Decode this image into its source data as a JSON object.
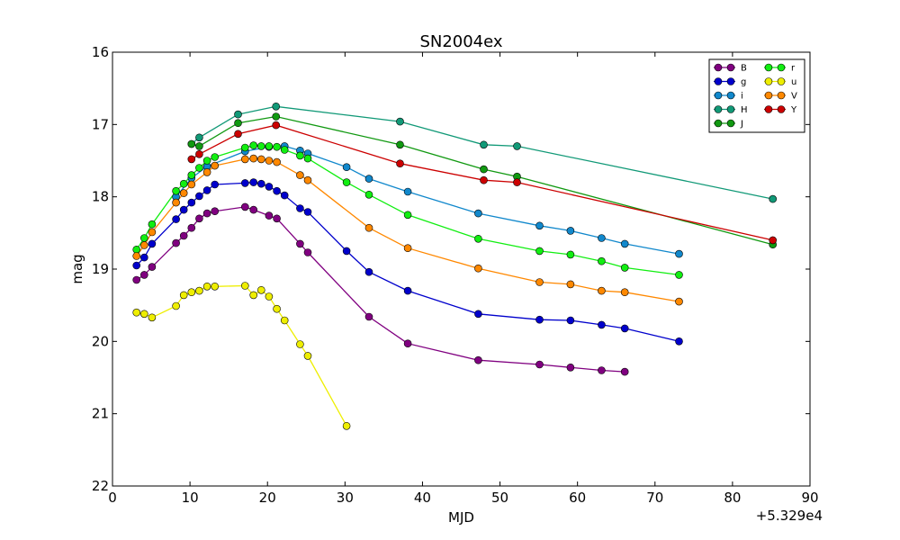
{
  "chart_data": {
    "type": "line",
    "title": "SN2004ex",
    "xlabel": "MJD",
    "ylabel": "mag",
    "x_offset_label": "+5.329e4",
    "xlim": [
      0,
      90
    ],
    "ylim": [
      22,
      16
    ],
    "y_inverted": true,
    "x_ticks": [
      0,
      10,
      20,
      30,
      40,
      50,
      60,
      70,
      80,
      90
    ],
    "y_ticks": [
      16,
      17,
      18,
      19,
      20,
      21,
      22
    ],
    "grid": false,
    "legend_position": "top-right",
    "legend_columns": 2,
    "series": [
      {
        "name": "B",
        "color": "#800080",
        "x": [
          3.1,
          4.1,
          5.1,
          8.2,
          9.2,
          10.2,
          11.2,
          12.2,
          13.2,
          17.1,
          18.2,
          20.2,
          21.2,
          24.2,
          25.2,
          33.1,
          38.1,
          47.2,
          55.1,
          59.1,
          63.1,
          66.1
        ],
        "y": [
          19.15,
          19.08,
          18.97,
          18.64,
          18.54,
          18.43,
          18.3,
          18.23,
          18.2,
          18.14,
          18.18,
          18.26,
          18.3,
          18.65,
          18.77,
          19.66,
          20.03,
          20.26,
          20.32,
          20.36,
          20.4,
          20.42
        ]
      },
      {
        "name": "g",
        "color": "#0000cc",
        "x": [
          3.1,
          4.1,
          5.1,
          8.2,
          9.2,
          10.2,
          11.2,
          12.2,
          13.2,
          17.1,
          18.2,
          19.2,
          20.2,
          21.2,
          22.2,
          24.2,
          25.2,
          30.2,
          33.1,
          38.1,
          47.2,
          55.1,
          59.1,
          63.1,
          66.1,
          73.1
        ],
        "y": [
          18.95,
          18.84,
          18.65,
          18.31,
          18.18,
          18.08,
          17.99,
          17.91,
          17.83,
          17.81,
          17.8,
          17.82,
          17.86,
          17.92,
          17.98,
          18.16,
          18.21,
          18.75,
          19.04,
          19.3,
          19.62,
          19.7,
          19.71,
          19.77,
          19.82,
          20.0
        ]
      },
      {
        "name": "i",
        "color": "#1188cc",
        "x": [
          8.2,
          10.2,
          12.2,
          17.1,
          20.2,
          22.2,
          24.2,
          25.2,
          30.2,
          33.1,
          38.1,
          47.2,
          55.1,
          59.1,
          63.1,
          66.1,
          73.1
        ],
        "y": [
          18.0,
          17.74,
          17.58,
          17.37,
          17.31,
          17.3,
          17.36,
          17.4,
          17.59,
          17.75,
          17.93,
          18.23,
          18.4,
          18.47,
          18.57,
          18.65,
          18.79
        ]
      },
      {
        "name": "H",
        "color": "#119977",
        "x": [
          10.2,
          11.2,
          16.2,
          21.1,
          37.1,
          47.9,
          52.2,
          85.2
        ],
        "y": [
          17.27,
          17.18,
          16.86,
          16.75,
          16.96,
          17.28,
          17.3,
          18.03
        ]
      },
      {
        "name": "J",
        "color": "#119911",
        "x": [
          10.2,
          11.2,
          16.2,
          21.1,
          37.1,
          47.9,
          52.2,
          85.2
        ],
        "y": [
          17.27,
          17.3,
          16.98,
          16.89,
          17.28,
          17.62,
          17.72,
          18.66
        ]
      },
      {
        "name": "r",
        "color": "#11ee11",
        "x": [
          3.1,
          4.1,
          5.1,
          8.2,
          9.2,
          10.2,
          11.2,
          12.2,
          13.2,
          17.1,
          18.2,
          19.2,
          20.2,
          21.2,
          22.2,
          24.2,
          25.2,
          30.2,
          33.1,
          38.1,
          47.2,
          55.1,
          59.1,
          63.1,
          66.1,
          73.1
        ],
        "y": [
          18.73,
          18.57,
          18.38,
          17.92,
          17.82,
          17.7,
          17.6,
          17.5,
          17.45,
          17.32,
          17.29,
          17.3,
          17.3,
          17.31,
          17.35,
          17.43,
          17.47,
          17.8,
          17.97,
          18.25,
          18.58,
          18.75,
          18.8,
          18.89,
          18.98,
          19.08
        ]
      },
      {
        "name": "u",
        "color": "#eeee00",
        "x": [
          3.1,
          4.1,
          5.1,
          8.2,
          9.2,
          10.2,
          11.2,
          12.2,
          13.2,
          17.1,
          18.2,
          19.2,
          20.2,
          21.2,
          22.2,
          24.2,
          25.2,
          30.2
        ],
        "y": [
          19.6,
          19.62,
          19.67,
          19.51,
          19.36,
          19.32,
          19.3,
          19.24,
          19.24,
          19.23,
          19.36,
          19.29,
          19.38,
          19.55,
          19.71,
          20.04,
          20.2,
          21.17
        ]
      },
      {
        "name": "V",
        "color": "#ff8800",
        "x": [
          3.1,
          4.1,
          5.1,
          8.2,
          9.2,
          10.2,
          12.2,
          13.2,
          17.1,
          18.2,
          19.2,
          20.2,
          21.2,
          24.2,
          25.2,
          33.1,
          38.1,
          47.2,
          55.1,
          59.1,
          63.1,
          66.1,
          73.1
        ],
        "y": [
          18.82,
          18.67,
          18.49,
          18.08,
          17.95,
          17.83,
          17.66,
          17.57,
          17.48,
          17.47,
          17.48,
          17.5,
          17.52,
          17.7,
          17.77,
          18.43,
          18.71,
          18.99,
          19.18,
          19.21,
          19.3,
          19.32,
          19.45
        ]
      },
      {
        "name": "Y",
        "color": "#cc0000",
        "x": [
          10.2,
          11.2,
          16.2,
          21.1,
          37.1,
          47.9,
          52.2,
          85.2
        ],
        "y": [
          17.48,
          17.41,
          17.13,
          17.01,
          17.54,
          17.77,
          17.8,
          18.6
        ]
      }
    ]
  }
}
